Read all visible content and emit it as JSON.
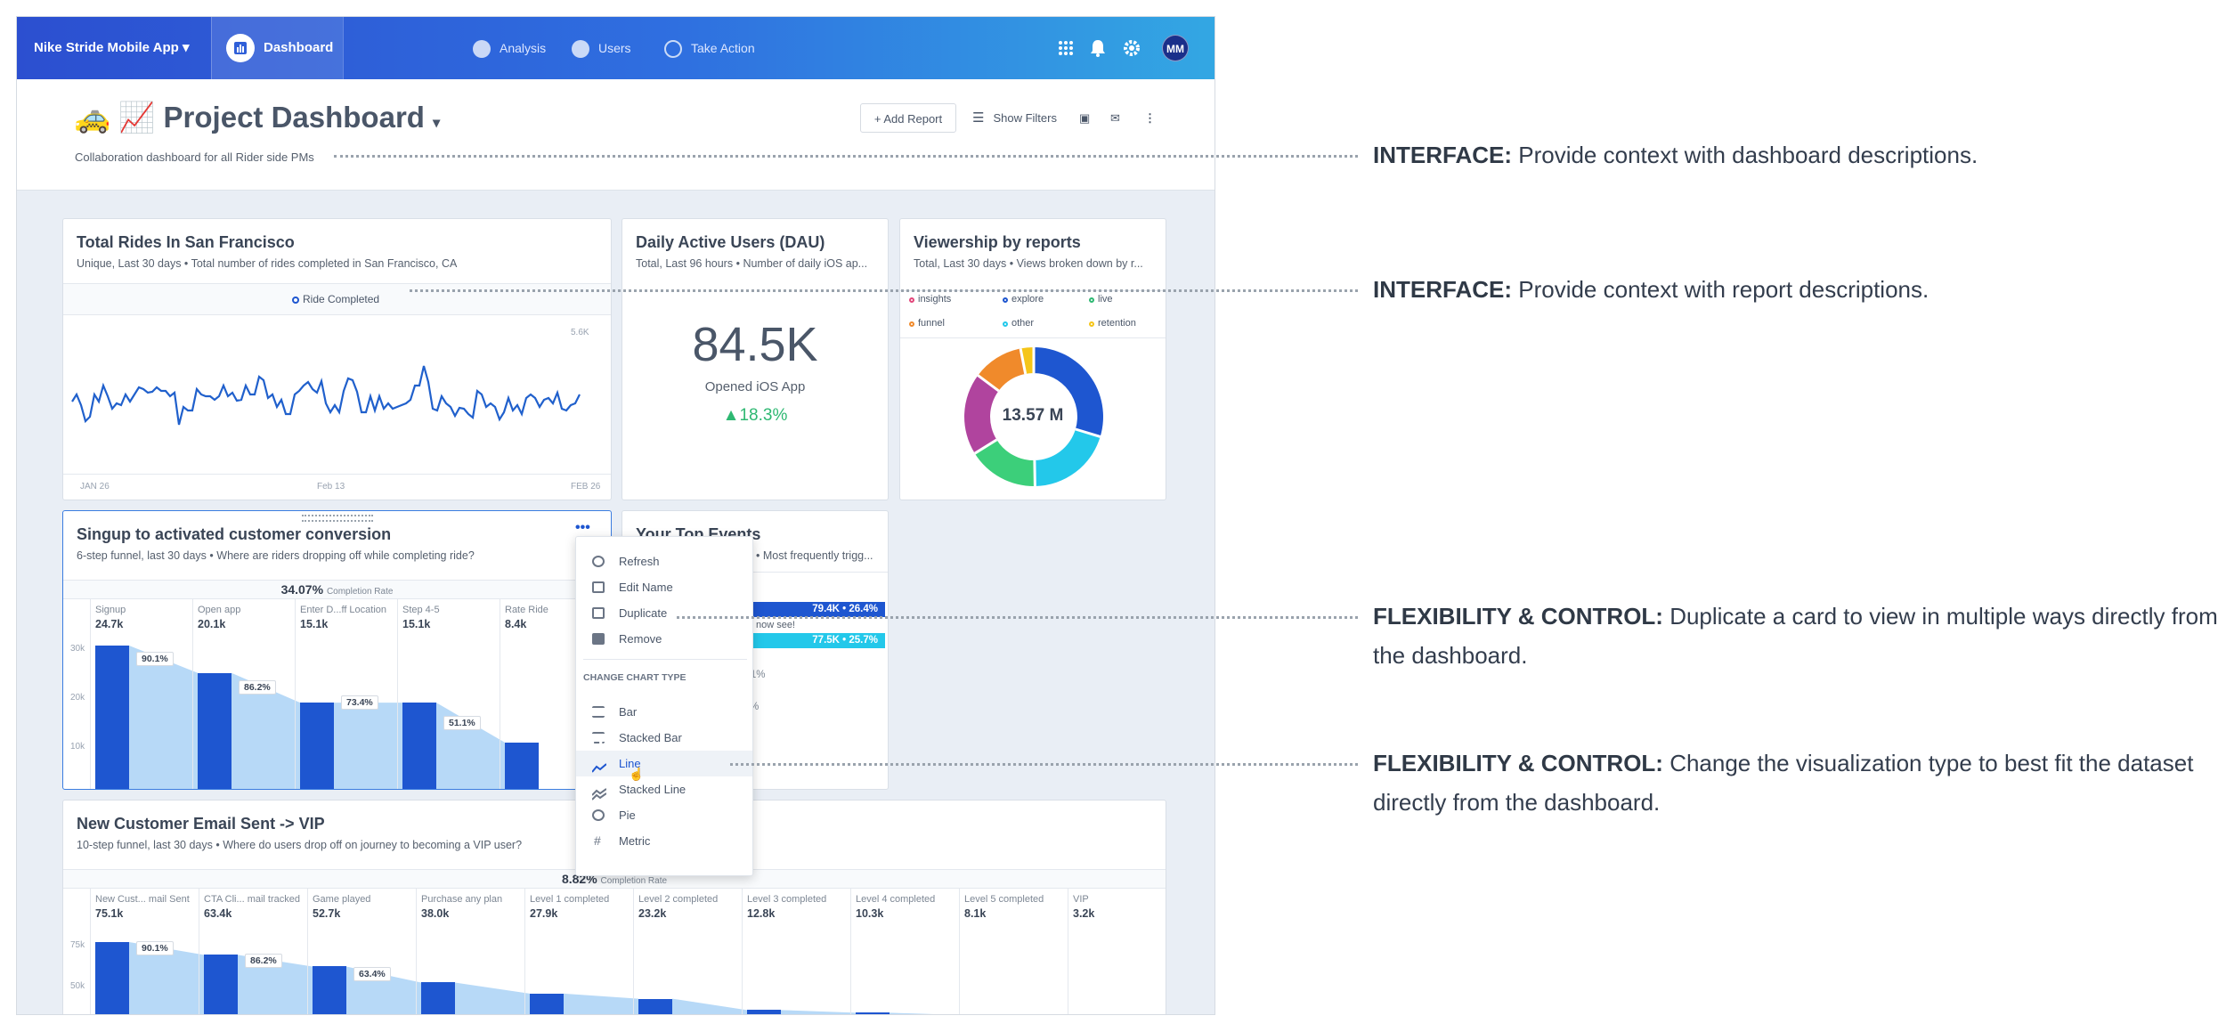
{
  "topbar": {
    "app_name": "Nike Stride Mobile App",
    "dashboard": "Dashboard",
    "nav": [
      "Analysis",
      "Users",
      "Take Action"
    ],
    "avatar": "MM"
  },
  "header": {
    "emoji": "🚕 📈",
    "title": "Project Dashboard",
    "description": "Collaboration dashboard for all Rider side PMs",
    "add_report": "+ Add Report",
    "show_filters": "Show Filters"
  },
  "cards": {
    "rides": {
      "title": "Total Rides In San Francisco",
      "subtitle_a": "Unique, Last 30 days",
      "subtitle_b": "Total number of rides completed in San Francisco, CA",
      "legend": "Ride Completed",
      "ytick": "5.6K",
      "xticks": [
        "JAN 26",
        "Feb 13",
        "FEB 26"
      ]
    },
    "dau": {
      "title": "Daily Active Users (DAU)",
      "subtitle_a": "Total, Last 96 hours",
      "subtitle_b": "Number of daily iOS ap...",
      "value": "84.5K",
      "label": "Opened iOS App",
      "change": "18.3%"
    },
    "viewership": {
      "title": "Viewership by reports",
      "subtitle_a": "Total, Last 30 days",
      "subtitle_b": "Views broken down by r...",
      "legend": [
        "insights",
        "explore",
        "live",
        "funnel",
        "other",
        "retention"
      ],
      "total": "13.57 M"
    },
    "funnel": {
      "title": "Singup to activated customer conversion",
      "subtitle_a": "6-step funnel, last 30 days",
      "subtitle_b": "Where are riders dropping off while completing ride?",
      "rate": "34.07%",
      "rate_label": "Completion Rate",
      "steps": [
        {
          "name": "Signup",
          "value": "24.7k"
        },
        {
          "name": "Open app",
          "value": "20.1k"
        },
        {
          "name": "Enter D...ff Location",
          "value": "15.1k"
        },
        {
          "name": "Step 4-5",
          "value": "15.1k"
        },
        {
          "name": "Rate Ride",
          "value": "8.4k"
        }
      ],
      "conversions": [
        "90.1%",
        "86.2%",
        "73.4%",
        "51.1%"
      ],
      "yticks": [
        "30k",
        "20k",
        "10k"
      ]
    },
    "events": {
      "title": "Your Top Events",
      "subtitle": "Most frequently trigg...",
      "rows": [
        "79.4K • 26.4%",
        "77.5K • 25.7%",
        "7.1%",
        "7.1%"
      ],
      "note": "u can now see!"
    },
    "vip": {
      "title": "New Customer Email Sent -> VIP",
      "subtitle_a": "10-step funnel, last 30 days",
      "subtitle_b": "Where do users drop off on journey to becoming a VIP user?",
      "rate": "8.82%",
      "rate_label": "Completion Rate",
      "steps": [
        {
          "name": "New Cust... mail Sent",
          "value": "75.1k"
        },
        {
          "name": "CTA Cli... mail tracked",
          "value": "63.4k"
        },
        {
          "name": "Game played",
          "value": "52.7k"
        },
        {
          "name": "Purchase any plan",
          "value": "38.0k"
        },
        {
          "name": "Level 1 completed",
          "value": "27.9k"
        },
        {
          "name": "Level 2 completed",
          "value": "23.2k"
        },
        {
          "name": "Level 3 completed",
          "value": "12.8k"
        },
        {
          "name": "Level 4 completed",
          "value": "10.3k"
        },
        {
          "name": "Level 5 completed",
          "value": "8.1k"
        },
        {
          "name": "VIP",
          "value": "3.2k"
        }
      ],
      "conversions": [
        "90.1%",
        "86.2%",
        "63.4%"
      ],
      "yticks": [
        "75k",
        "50k"
      ]
    }
  },
  "menu": {
    "items": [
      "Refresh",
      "Edit Name",
      "Duplicate",
      "Remove"
    ],
    "section": "CHANGE CHART TYPE",
    "chart_types": [
      "Bar",
      "Stacked Bar",
      "Line",
      "Stacked Line",
      "Pie",
      "Metric"
    ]
  },
  "annotations": [
    {
      "label": "INTERFACE:",
      "text": "Provide context with dashboard descriptions."
    },
    {
      "label": "INTERFACE:",
      "text": "Provide context with report descriptions."
    },
    {
      "label": "FLEXIBILITY & CONTROL:",
      "text": "Duplicate a card to view in multiple ways directly from the dashboard."
    },
    {
      "label": "FLEXIBILITY & CONTROL:",
      "text": "Change the visualization type to best fit the dataset directly from the dashboard."
    }
  ],
  "colors": {
    "primary": "#1e56d0",
    "accent_green": "#2eb872",
    "funnel_light": "#b7d9f7"
  }
}
